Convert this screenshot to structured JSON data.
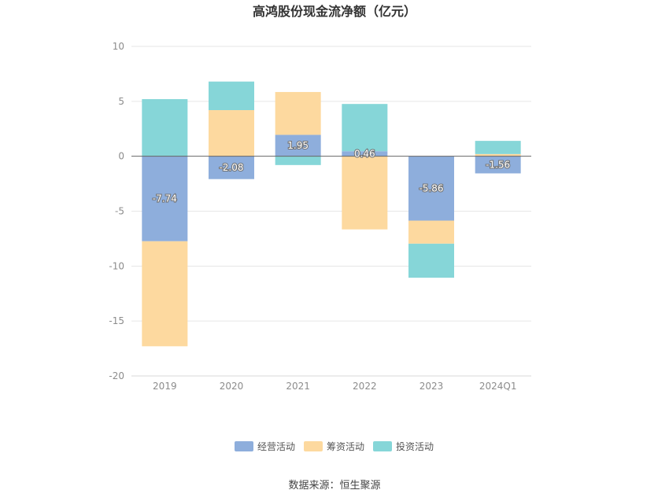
{
  "chart_data": {
    "type": "bar",
    "stacked": true,
    "title": "高鸿股份现金流净额（亿元）",
    "categories": [
      "2019",
      "2020",
      "2021",
      "2022",
      "2023",
      "2024Q1"
    ],
    "series": [
      {
        "name": "经营活动",
        "color": "#8eaedc",
        "values": [
          -7.74,
          -2.08,
          1.95,
          0.46,
          -5.86,
          -1.56
        ],
        "labels": [
          "-7.74",
          "-2.08",
          "1.95",
          "0.46",
          "-5.86",
          "-1.56"
        ]
      },
      {
        "name": "筹资活动",
        "color": "#fdd99f",
        "values": [
          -9.56,
          4.2,
          3.9,
          -6.66,
          -2.1,
          0.2
        ]
      },
      {
        "name": "投资活动",
        "color": "#86d6d8",
        "values": [
          5.2,
          2.6,
          -0.8,
          4.3,
          -3.1,
          1.2
        ]
      }
    ],
    "ylim": [
      -20,
      10
    ],
    "yticks": [
      "10",
      "5",
      "0",
      "-5",
      "-10",
      "-15",
      "-20"
    ],
    "ytick_values": [
      10,
      5,
      0,
      -5,
      -10,
      -15,
      -20
    ],
    "grid": true,
    "legend_position": "bottom"
  },
  "source_text": "数据来源：恒生聚源"
}
